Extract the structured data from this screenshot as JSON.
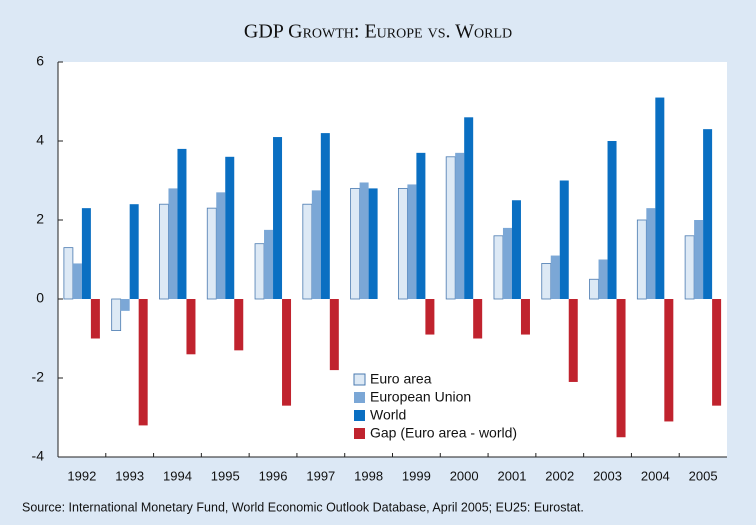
{
  "chart_data": {
    "type": "bar",
    "title": "GDP Growth: Europe vs. World",
    "source": "Source: International Monetary Fund, World Economic Outlook Database, April 2005; EU25: Eurostat.",
    "categories": [
      "1992",
      "1993",
      "1994",
      "1995",
      "1996",
      "1997",
      "1998",
      "1999",
      "2000",
      "2001",
      "2002",
      "2003",
      "2004",
      "2005"
    ],
    "series": [
      {
        "name": "Euro area",
        "color": "#dde9f5",
        "values": [
          1.3,
          -0.8,
          2.4,
          2.3,
          1.4,
          2.4,
          2.8,
          2.8,
          3.6,
          1.6,
          0.9,
          0.5,
          2.0,
          1.6
        ]
      },
      {
        "name": "European Union",
        "color": "#7ba7d6",
        "values": [
          0.9,
          -0.3,
          2.8,
          2.7,
          1.75,
          2.75,
          2.95,
          2.9,
          3.7,
          1.8,
          1.1,
          1.0,
          2.3,
          2.0
        ]
      },
      {
        "name": "World",
        "color": "#0a6fc2",
        "values": [
          2.3,
          2.4,
          3.8,
          3.6,
          4.1,
          4.2,
          2.8,
          3.7,
          4.6,
          2.5,
          3.0,
          4.0,
          5.1,
          4.3
        ]
      },
      {
        "name": "Gap (Euro area - world)",
        "color": "#c0232e",
        "values": [
          -1.0,
          -3.2,
          -1.4,
          -1.3,
          -2.7,
          -1.8,
          0,
          -0.9,
          -1.0,
          -0.9,
          -2.1,
          -3.5,
          -3.1,
          -2.7
        ]
      }
    ],
    "ylim": [
      -4,
      6
    ],
    "yticks": [
      -4,
      -2,
      0,
      2,
      4,
      6
    ],
    "grid": false
  }
}
